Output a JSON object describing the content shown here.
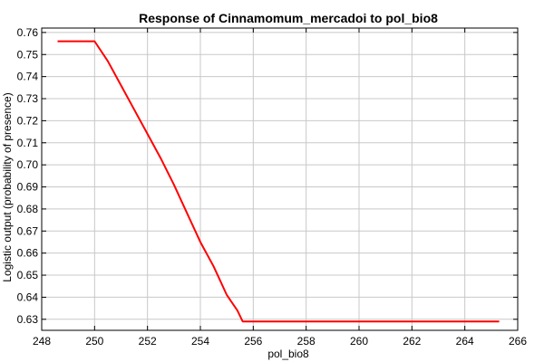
{
  "chart_data": {
    "type": "line",
    "title": "Response of Cinnamomum_mercadoi to pol_bio8",
    "xlabel": "pol_bio8",
    "ylabel": "Logistic output (probability of presence)",
    "xlim": [
      248,
      266
    ],
    "ylim": [
      0.625,
      0.762
    ],
    "grid": true,
    "x_ticks": [
      248,
      250,
      252,
      254,
      256,
      258,
      260,
      262,
      264,
      266
    ],
    "x_tick_labels": [
      "248",
      "250",
      "252",
      "254",
      "256",
      "258",
      "260",
      "262",
      "264",
      "266"
    ],
    "y_ticks": [
      0.63,
      0.64,
      0.65,
      0.66,
      0.67,
      0.68,
      0.69,
      0.7,
      0.71,
      0.72,
      0.73,
      0.74,
      0.75,
      0.76
    ],
    "y_tick_labels": [
      "0.63",
      "0.64",
      "0.65",
      "0.66",
      "0.67",
      "0.68",
      "0.69",
      "0.70",
      "0.71",
      "0.72",
      "0.73",
      "0.74",
      "0.75",
      "0.76"
    ],
    "series": [
      {
        "color": "#ff0000",
        "x": [
          248.6,
          250.0,
          250.5,
          251.0,
          251.5,
          252.0,
          252.5,
          253.0,
          253.5,
          254.0,
          254.5,
          255.0,
          255.4,
          255.6,
          256.0,
          258.0,
          260.0,
          262.0,
          264.0,
          265.3
        ],
        "y": [
          0.756,
          0.756,
          0.747,
          0.736,
          0.725,
          0.714,
          0.703,
          0.691,
          0.678,
          0.665,
          0.654,
          0.641,
          0.634,
          0.629,
          0.629,
          0.629,
          0.629,
          0.629,
          0.629,
          0.629
        ]
      }
    ]
  }
}
